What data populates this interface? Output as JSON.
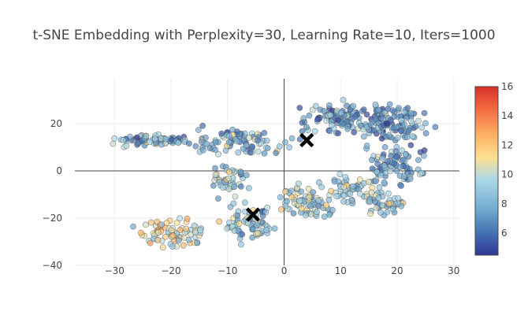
{
  "chart_data": {
    "type": "scatter",
    "title": "t-SNE Embedding with Perplexity=30, Learning Rate=10, Iters=1000",
    "xlabel": "",
    "ylabel": "",
    "xlim": [
      -37,
      31
    ],
    "ylim": [
      -40,
      39
    ],
    "x_ticks": [
      -30,
      -20,
      -10,
      0,
      10,
      20,
      30
    ],
    "x_tick_labels": [
      "−30",
      "−20",
      "−10",
      "0",
      "10",
      "20",
      "30"
    ],
    "y_ticks": [
      -40,
      -20,
      0,
      20
    ],
    "y_tick_labels": [
      "−40",
      "−20",
      "0",
      "20"
    ],
    "grid": true,
    "zero_lines": true,
    "colorscale": "RdYlBu (reversed)",
    "color_range": [
      4.5,
      16
    ],
    "colorbar_ticks": [
      6,
      8,
      10,
      12,
      14,
      16
    ],
    "colorbar_tick_labels": [
      "6",
      "8",
      "10",
      "12",
      "14",
      "16"
    ],
    "colors": {
      "gridline": "#eeeeee",
      "zeroline": "#444444",
      "marker_outline": "#444444",
      "centroid_marker": "#000000"
    },
    "series": [
      {
        "name": "samples",
        "marker": "circle",
        "clusters": [
          {
            "center": [
              -24,
              13
            ],
            "spread": [
              7,
              2
            ],
            "n": 80,
            "color_mean": 8.5
          },
          {
            "center": [
              -8,
              12
            ],
            "spread": [
              8,
              5
            ],
            "n": 90,
            "color_mean": 8.0
          },
          {
            "center": [
              -20,
              -27
            ],
            "spread": [
              6,
              5
            ],
            "n": 80,
            "color_mean": 10.5
          },
          {
            "center": [
              -10,
              -4
            ],
            "spread": [
              3,
              6
            ],
            "n": 45,
            "color_mean": 9.0
          },
          {
            "center": [
              -6,
              -22
            ],
            "spread": [
              4,
              7
            ],
            "n": 70,
            "color_mean": 9.0
          },
          {
            "center": [
              4,
              -14
            ],
            "spread": [
              5,
              6
            ],
            "n": 80,
            "color_mean": 9.5
          },
          {
            "center": [
              10,
              22
            ],
            "spread": [
              6,
              5
            ],
            "n": 110,
            "color_mean": 7.5
          },
          {
            "center": [
              19,
              20
            ],
            "spread": [
              5,
              8
            ],
            "n": 120,
            "color_mean": 7.0
          },
          {
            "center": [
              20,
              2
            ],
            "spread": [
              5,
              8
            ],
            "n": 90,
            "color_mean": 7.5
          },
          {
            "center": [
              12,
              -8
            ],
            "spread": [
              5,
              6
            ],
            "n": 60,
            "color_mean": 9.0
          },
          {
            "center": [
              18,
              -14
            ],
            "spread": [
              3,
              4
            ],
            "n": 40,
            "color_mean": 9.0
          }
        ]
      },
      {
        "name": "centroids",
        "marker": "x",
        "points": [
          [
            4,
            13
          ],
          [
            -5.5,
            -18.5
          ]
        ]
      }
    ]
  }
}
